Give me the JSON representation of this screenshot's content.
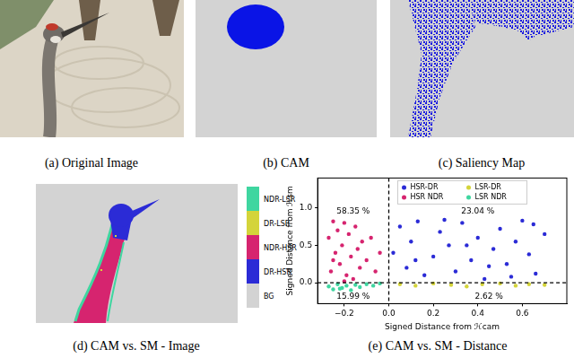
{
  "panels": {
    "a": {
      "caption": "(a) Original Image"
    },
    "b": {
      "caption": "(b) CAM"
    },
    "c": {
      "caption": "(c) Saliency Map"
    },
    "d": {
      "caption": "(d) CAM vs. SM - Image",
      "legend": [
        {
          "label": "NDR-LSR",
          "color": "#3fd6a0"
        },
        {
          "label": "DR-LSR",
          "color": "#d4d43a"
        },
        {
          "label": "NDR-HSR",
          "color": "#d6246f"
        },
        {
          "label": "DR-HSR",
          "color": "#2b2bd6"
        },
        {
          "label": "BG",
          "color": "#d3d3d3"
        }
      ]
    },
    "e": {
      "caption": "(e) CAM vs. SM - Distance"
    }
  },
  "chart_data": {
    "type": "scatter",
    "x_label": "Signed Distance from ℋcam",
    "y_label": "Signed Distance from ℋsm",
    "xlim": [
      -0.32,
      0.8
    ],
    "xticks": [
      {
        "value": -0.2,
        "label": "−0.2"
      },
      {
        "value": 0,
        "label": "0.0"
      },
      0.2,
      0.4,
      0.6
    ],
    "ylim": [
      -0.28,
      1.4
    ],
    "yticks": [
      {
        "value": 0,
        "label": "0.0"
      },
      0.5,
      {
        "value": 1,
        "label": "1.0"
      }
    ],
    "grid": false,
    "legend": "top",
    "reference_lines": [
      {
        "axis": "x",
        "value": 0
      },
      {
        "axis": "y",
        "value": 0
      }
    ],
    "annotations": [
      {
        "text": "58.35 %",
        "x": -0.16,
        "y": 0.95
      },
      {
        "text": "23.04 %",
        "x": 0.4,
        "y": 0.95
      },
      {
        "text": "15.99 %",
        "x": -0.16,
        "y": -0.19
      },
      {
        "text": "2.62 %",
        "x": 0.45,
        "y": -0.19
      }
    ],
    "series": [
      {
        "name": "HSR-DR",
        "color": "#2b2bd6",
        "x": [
          0.02,
          0.05,
          0.08,
          0.1,
          0.13,
          0.16,
          0.2,
          0.23,
          0.27,
          0.3,
          0.33,
          0.37,
          0.4,
          0.43,
          0.47,
          0.5,
          0.53,
          0.57,
          0.6,
          0.63,
          0.66,
          0.7,
          0.12,
          0.35,
          0.55,
          0.25,
          0.45,
          0.65
        ],
        "values": [
          0.4,
          0.75,
          0.2,
          0.55,
          0.82,
          0.1,
          0.35,
          0.68,
          0.5,
          0.15,
          0.8,
          0.3,
          0.6,
          0.05,
          0.45,
          0.72,
          0.25,
          0.55,
          0.83,
          0.38,
          0.12,
          0.65,
          0.3,
          0.5,
          0.08,
          0.84,
          0.22,
          0.78
        ]
      },
      {
        "name": "LSR-DR",
        "color": "#d4d43a",
        "x": [
          0.05,
          0.12,
          0.2,
          0.28,
          0.35,
          0.42,
          0.5,
          0.57,
          0.63,
          0.7
        ],
        "values": [
          -0.02,
          -0.04,
          -0.01,
          -0.03,
          -0.05,
          -0.02,
          -0.01,
          -0.04,
          -0.02,
          -0.03
        ]
      },
      {
        "name": "HSR NDR",
        "color": "#d6246f",
        "x": [
          -0.27,
          -0.26,
          -0.25,
          -0.24,
          -0.23,
          -0.22,
          -0.21,
          -0.2,
          -0.19,
          -0.18,
          -0.17,
          -0.16,
          -0.15,
          -0.14,
          -0.13,
          -0.12,
          -0.1,
          -0.08,
          -0.06,
          -0.04,
          -0.25,
          -0.2
        ],
        "values": [
          0.6,
          0.15,
          0.82,
          0.4,
          0.7,
          0.25,
          0.5,
          0.8,
          0.1,
          0.65,
          0.35,
          0.05,
          0.75,
          0.45,
          0.2,
          0.55,
          0.3,
          0.6,
          0.15,
          0.4,
          0.3,
          0.02
        ]
      },
      {
        "name": "LSR NDR",
        "color": "#3fd6a0",
        "x": [
          -0.27,
          -0.25,
          -0.23,
          -0.21,
          -0.19,
          -0.17,
          -0.15,
          -0.13,
          -0.1,
          -0.07,
          -0.04,
          -0.22
        ],
        "values": [
          -0.05,
          -0.09,
          -0.02,
          -0.07,
          -0.04,
          -0.1,
          -0.03,
          -0.06,
          -0.02,
          -0.04,
          -0.01,
          -0.08
        ]
      }
    ]
  }
}
